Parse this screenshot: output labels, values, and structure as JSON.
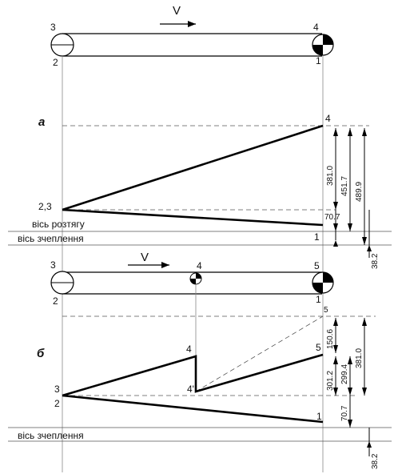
{
  "top": {
    "velocity": "V",
    "points": {
      "p3": "3",
      "p4": "4",
      "p2": "2",
      "p1": "1"
    }
  },
  "diagram_a": {
    "letter": "а",
    "label_4": "4",
    "label_23": "2,3",
    "label_1": "1",
    "axis_tension": "вісь розтягу",
    "axis_grip": "вісь зчеплення",
    "dims": [
      "381.0",
      "451.7",
      "489.9",
      "70.7",
      "38.2"
    ]
  },
  "middle": {
    "velocity": "V",
    "points": {
      "p3": "3",
      "p4": "4",
      "p5": "5",
      "p2": "2",
      "p1": "1"
    }
  },
  "diagram_b": {
    "letter": "б",
    "label_5_top": "5",
    "label_4": "4",
    "label_4prime": "4'",
    "label_5": "5",
    "label_3": "3",
    "label_2": "2",
    "label_1": "1",
    "axis_grip": "вісь зчеплення",
    "dims": [
      "150.6",
      "301.2",
      "299.4",
      "381.0",
      "70.7",
      "38.2"
    ]
  }
}
